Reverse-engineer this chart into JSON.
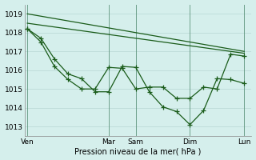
{
  "xlabel": "Pression niveau de la mer( hPa )",
  "bg_color": "#d5efec",
  "line_color": "#1a5c1a",
  "grid_color": "#b8d8d4",
  "ylim": [
    1012.5,
    1019.5
  ],
  "yticks": [
    1013,
    1014,
    1015,
    1016,
    1017,
    1018,
    1019
  ],
  "x_tick_labels": [
    "Ven",
    "Mar",
    "Sam",
    "Dim",
    "Lun"
  ],
  "x_tick_positions": [
    0,
    36,
    48,
    72,
    96
  ],
  "xlim": [
    -1,
    99
  ],
  "line1": {
    "x": [
      0,
      96
    ],
    "y": [
      1019.0,
      1017.0
    ]
  },
  "line2": {
    "x": [
      0,
      96
    ],
    "y": [
      1018.5,
      1016.9
    ]
  },
  "line3": {
    "x": [
      0,
      6,
      12,
      18,
      24,
      30,
      36,
      42,
      48,
      54,
      60,
      66,
      72,
      78,
      84,
      90,
      96
    ],
    "y": [
      1018.2,
      1017.7,
      1016.6,
      1015.8,
      1015.55,
      1014.85,
      1014.85,
      1016.2,
      1016.15,
      1014.85,
      1014.05,
      1013.8,
      1013.1,
      1013.85,
      1015.55,
      1015.5,
      1015.3
    ]
  },
  "line4": {
    "x": [
      0,
      6,
      12,
      18,
      24,
      30,
      36,
      42,
      48,
      54,
      60,
      66,
      72,
      78,
      84,
      90,
      96
    ],
    "y": [
      1018.2,
      1017.5,
      1016.2,
      1015.5,
      1015.0,
      1015.0,
      1016.15,
      1016.1,
      1015.0,
      1015.1,
      1015.1,
      1014.5,
      1014.5,
      1015.1,
      1015.0,
      1016.85,
      1016.75
    ]
  }
}
